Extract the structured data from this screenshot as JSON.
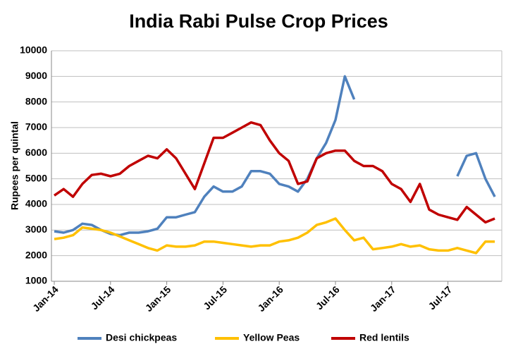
{
  "chart_data": {
    "type": "line",
    "title": "India Rabi Pulse Crop Prices",
    "y_label": "Rupees per quintal",
    "categories": [
      "Jan-14",
      null,
      null,
      null,
      null,
      null,
      "Jul-14",
      null,
      null,
      null,
      null,
      null,
      "Jan-15",
      null,
      null,
      null,
      null,
      null,
      "Jul-15",
      null,
      null,
      null,
      null,
      null,
      "Jan-16",
      null,
      null,
      null,
      null,
      null,
      "Jul-16",
      null,
      null,
      null,
      null,
      null,
      "Jan-17",
      null,
      null,
      null,
      null,
      null,
      "Jul-17",
      null,
      null,
      null,
      null,
      null
    ],
    "series": [
      {
        "name": "Desi chickpeas",
        "color": "#4f81bd",
        "values": [
          2950,
          2900,
          3000,
          3250,
          3200,
          3000,
          2850,
          2800,
          2900,
          2900,
          2950,
          3050,
          3500,
          3500,
          3600,
          3700,
          4300,
          4700,
          4500,
          4500,
          4700,
          5300,
          5300,
          5200,
          4800,
          4700,
          4500,
          5000,
          5800,
          6400,
          7300,
          9000,
          8100,
          null,
          null,
          null,
          null,
          null,
          null,
          null,
          null,
          null,
          null,
          5100,
          5900,
          6000,
          5000,
          4300
        ]
      },
      {
        "name": "Yellow Peas",
        "color": "#ffc000",
        "values": [
          2650,
          2700,
          2800,
          3100,
          3050,
          3000,
          2900,
          2750,
          2600,
          2450,
          2300,
          2200,
          2400,
          2350,
          2350,
          2400,
          2550,
          2550,
          2500,
          2450,
          2400,
          2350,
          2400,
          2400,
          2550,
          2600,
          2700,
          2900,
          3200,
          3300,
          3450,
          3000,
          2600,
          2700,
          2250,
          2300,
          2350,
          2450,
          2350,
          2400,
          2250,
          2200,
          2200,
          2300,
          2200,
          2100,
          2550,
          2550
        ]
      },
      {
        "name": "Red lentils",
        "color": "#c00000",
        "values": [
          4350,
          4600,
          4300,
          4800,
          5150,
          5200,
          5100,
          5200,
          5500,
          5700,
          5900,
          5800,
          6150,
          5800,
          5200,
          4600,
          5600,
          6600,
          6600,
          6800,
          7000,
          7200,
          7100,
          6500,
          6000,
          5700,
          4800,
          4900,
          5800,
          6000,
          6100,
          6100,
          5700,
          5500,
          5500,
          5300,
          4800,
          4600,
          4100,
          4800,
          3800,
          3600,
          3500,
          3400,
          3900,
          3600,
          3300,
          3450
        ]
      }
    ],
    "ylim": [
      1000,
      10000
    ],
    "yticks": [
      1000,
      2000,
      3000,
      4000,
      5000,
      6000,
      7000,
      8000,
      9000,
      10000
    ],
    "grid": true,
    "legend": "bottom"
  }
}
